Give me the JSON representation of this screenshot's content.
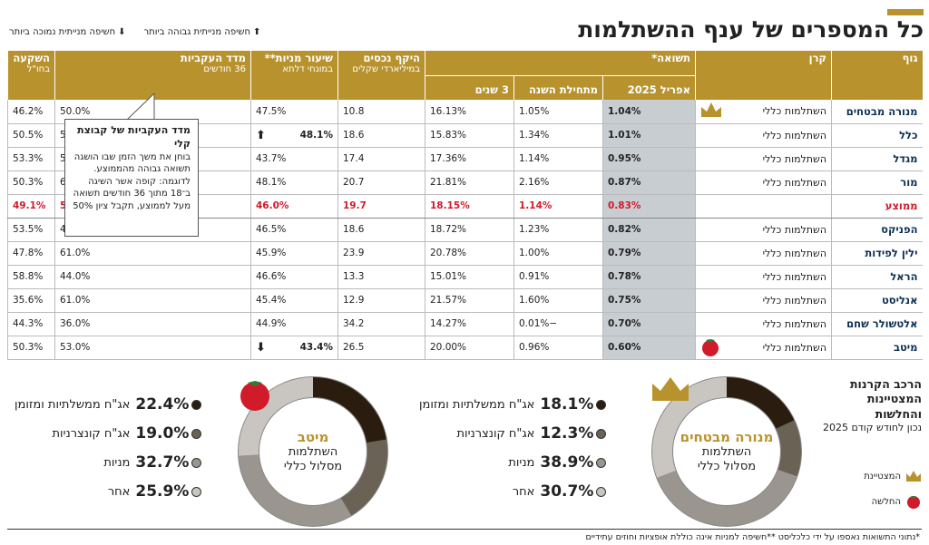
{
  "header": {
    "title": "כל המספרים של ענף ההשתלמות",
    "legend_up": "חשיפה מנייתית גבוהה ביותר",
    "legend_down": "חשיפה מנייתית נמוכה ביותר"
  },
  "colors": {
    "gold": "#b8922c",
    "avg_red": "#d11a2a",
    "apr_bg": "#c8cdd1",
    "navy": "#0b2f54"
  },
  "table": {
    "headers": {
      "body": "גוף",
      "fund": "קרן",
      "returns": "תשואה*",
      "apr": "אפריל 2025",
      "ytd": "מתחילת השנה",
      "three_years": "3 שנים",
      "assets": "היקף נכסים",
      "assets_sub": "במיליארדי שקלים",
      "equity": "שיעור מניות**",
      "equity_sub": "במונחי דלתא",
      "consistency": "מדד העקביות",
      "consistency_sub": "36 חודשים",
      "abroad": "השקעה",
      "abroad_sub": "בחו\"ל"
    },
    "rows": [
      {
        "body": "מנורה מבטחים",
        "fund": "השתלמות כללי",
        "icon": "crown",
        "apr": "1.04%",
        "ytd": "1.05%",
        "three_years": "16.13%",
        "assets": "10.8",
        "equity": "47.5%",
        "equity_mark": "",
        "consistency": "50.0%",
        "abroad": "46.2%"
      },
      {
        "body": "כלל",
        "fund": "השתלמות כללי",
        "icon": "",
        "apr": "1.01%",
        "ytd": "1.34%",
        "three_years": "15.83%",
        "assets": "18.6",
        "equity": "48.1%",
        "equity_mark": "up",
        "consistency": "50.0%",
        "abroad": "50.5%"
      },
      {
        "body": "מגדל",
        "fund": "השתלמות כללי",
        "icon": "",
        "apr": "0.95%",
        "ytd": "1.14%",
        "three_years": "17.36%",
        "assets": "17.4",
        "equity": "43.7%",
        "equity_mark": "",
        "consistency": "50.0%",
        "abroad": "53.3%"
      },
      {
        "body": "מור",
        "fund": "השתלמות כללי",
        "icon": "",
        "apr": "0.87%",
        "ytd": "2.16%",
        "three_years": "21.81%",
        "assets": "20.7",
        "equity": "48.1%",
        "equity_mark": "",
        "consistency": "64.0%",
        "abroad": "50.3%"
      },
      {
        "body": "ממוצע",
        "fund": "",
        "icon": "",
        "apr": "0.83%",
        "ytd": "1.14%",
        "three_years": "18.15%",
        "assets": "19.7",
        "equity": "46.0%",
        "equity_mark": "",
        "consistency": "51.7%",
        "abroad": "49.1%",
        "avg": true
      },
      {
        "body": "הפניקס",
        "fund": "השתלמות כללי",
        "icon": "",
        "apr": "0.82%",
        "ytd": "1.23%",
        "three_years": "18.72%",
        "assets": "18.6",
        "equity": "46.5%",
        "equity_mark": "",
        "consistency": "47.0%",
        "abroad": "53.5%"
      },
      {
        "body": "ילין לפידות",
        "fund": "השתלמות כללי",
        "icon": "",
        "apr": "0.79%",
        "ytd": "1.00%",
        "three_years": "20.78%",
        "assets": "23.9",
        "equity": "45.9%",
        "equity_mark": "",
        "consistency": "61.0%",
        "abroad": "47.8%"
      },
      {
        "body": "הראל",
        "fund": "השתלמות כללי",
        "icon": "",
        "apr": "0.78%",
        "ytd": "0.91%",
        "three_years": "15.01%",
        "assets": "13.3",
        "equity": "46.6%",
        "equity_mark": "",
        "consistency": "44.0%",
        "abroad": "58.8%"
      },
      {
        "body": "אנליסט",
        "fund": "השתלמות כללי",
        "icon": "",
        "apr": "0.75%",
        "ytd": "1.60%",
        "three_years": "21.57%",
        "assets": "12.9",
        "equity": "45.4%",
        "equity_mark": "",
        "consistency": "61.0%",
        "abroad": "35.6%"
      },
      {
        "body": "אלטשולר שחם",
        "fund": "השתלמות כללי",
        "icon": "",
        "apr": "0.70%",
        "ytd": "−0.01%",
        "three_years": "14.27%",
        "assets": "34.2",
        "equity": "44.9%",
        "equity_mark": "",
        "consistency": "36.0%",
        "abroad": "44.3%"
      },
      {
        "body": "מיטב",
        "fund": "השתלמות כללי",
        "icon": "tomato",
        "apr": "0.60%",
        "ytd": "0.96%",
        "three_years": "20.00%",
        "assets": "26.5",
        "equity": "43.4%",
        "equity_mark": "down",
        "consistency": "53.0%",
        "abroad": "50.3%"
      }
    ]
  },
  "tooltip": {
    "title": "מדד העקביות של קבוצת קלי",
    "text": "בוחן את משך הזמן שבו הושגה תשואה גבוהה מהממוצע. לדוגמה: קופה אשר השיגה ב־18 מתוך 36 חודשים תשואה מעל לממוצע, תקבל ציון 50%"
  },
  "composition": {
    "label": "הרכב הקרנות המצטיינות והחלשות",
    "sublabel": "נכון לחודש קודם 2025",
    "legend_best": "המצטיינת",
    "legend_worst": "החלשה"
  },
  "chart_data": [
    {
      "type": "pie",
      "name": "מנורה מבטחים",
      "track": "השתלמות מסלול כללי",
      "categories": [
        "אג\"ח ממשלתיות ומזומן",
        "אג\"ח קונצרניות",
        "מניות",
        "אחר"
      ],
      "values": [
        18.1,
        12.3,
        38.9,
        30.7
      ],
      "labels": [
        "18.1%",
        "12.3%",
        "38.9%",
        "30.7%"
      ],
      "colors": [
        "#2a1d10",
        "#6b6256",
        "#9a958e",
        "#c9c6c1"
      ]
    },
    {
      "type": "pie",
      "name": "מיטב",
      "track": "השתלמות מסלול כללי",
      "categories": [
        "אג\"ח ממשלתיות ומזומן",
        "אג\"ח קונצרניות",
        "מניות",
        "אחר"
      ],
      "values": [
        22.4,
        19.0,
        32.7,
        25.9
      ],
      "labels": [
        "22.4%",
        "19.0%",
        "32.7%",
        "25.9%"
      ],
      "colors": [
        "#2a1d10",
        "#6b6256",
        "#9a958e",
        "#c9c6c1"
      ]
    }
  ],
  "footnote": "*נתוני התשואות נאספו על ידי כלכליסט **חשיפה למניות אינה כוללת אופציות וחוזים עתידיים"
}
